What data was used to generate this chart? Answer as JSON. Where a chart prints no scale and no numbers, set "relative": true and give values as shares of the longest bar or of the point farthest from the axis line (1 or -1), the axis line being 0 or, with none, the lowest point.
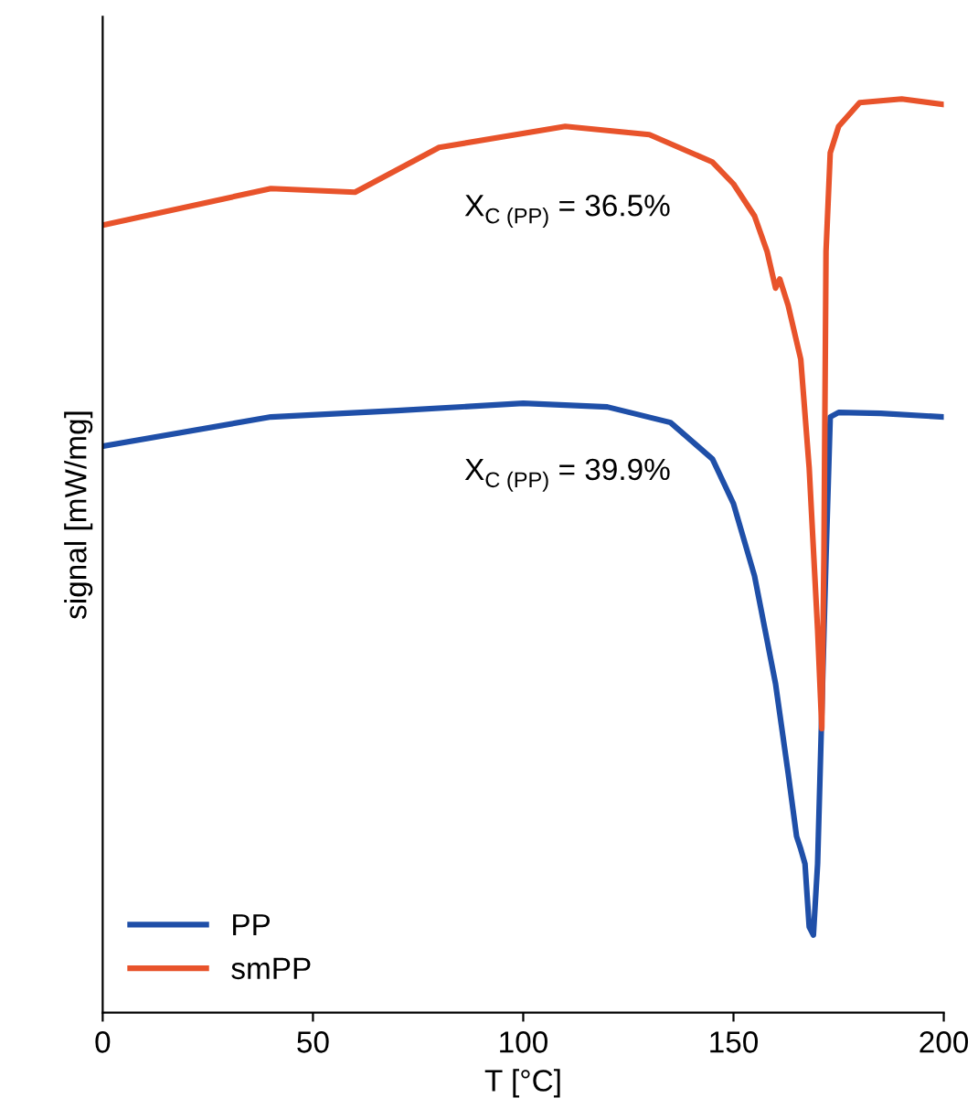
{
  "chart_data": {
    "type": "line",
    "relative": true,
    "xlabel": "T [°C]",
    "ylabel": "signal [mW/mg]",
    "xlim": [
      0,
      200
    ],
    "xticks": [
      0,
      50,
      100,
      150,
      200
    ],
    "tick_labels": "x",
    "legend": "bottom left",
    "grid": false,
    "marker": "none",
    "line_style": "solid",
    "annotations": [
      "X$_{C (PP)}$ = 36.5%",
      "X$_{C (PP)}$ = 39.9%"
    ],
    "series": [
      {
        "name": "PP",
        "color": "#1f4fa8",
        "x": [
          0,
          40,
          70,
          100,
          120,
          135,
          145,
          150,
          155,
          160,
          163,
          165,
          166,
          167,
          168,
          169,
          170,
          172,
          173,
          175,
          185,
          200
        ],
        "values": [
          0.62,
          0.652,
          0.659,
          0.667,
          0.663,
          0.646,
          0.606,
          0.557,
          0.478,
          0.36,
          0.262,
          0.193,
          0.179,
          0.163,
          0.094,
          0.085,
          0.163,
          0.498,
          0.652,
          0.657,
          0.656,
          0.652
        ]
      },
      {
        "name": "smPP",
        "color": "#e8532b",
        "x": [
          0,
          40,
          60,
          80,
          110,
          130,
          145,
          150,
          155,
          158,
          160,
          161,
          163,
          166,
          168,
          170,
          171,
          171.5,
          172,
          173,
          175,
          180,
          190,
          200
        ],
        "values": [
          0.862,
          0.902,
          0.898,
          0.947,
          0.97,
          0.961,
          0.931,
          0.907,
          0.872,
          0.833,
          0.793,
          0.803,
          0.774,
          0.715,
          0.596,
          0.419,
          0.311,
          0.498,
          0.833,
          0.941,
          0.97,
          0.996,
          1.0,
          0.994
        ]
      }
    ]
  }
}
